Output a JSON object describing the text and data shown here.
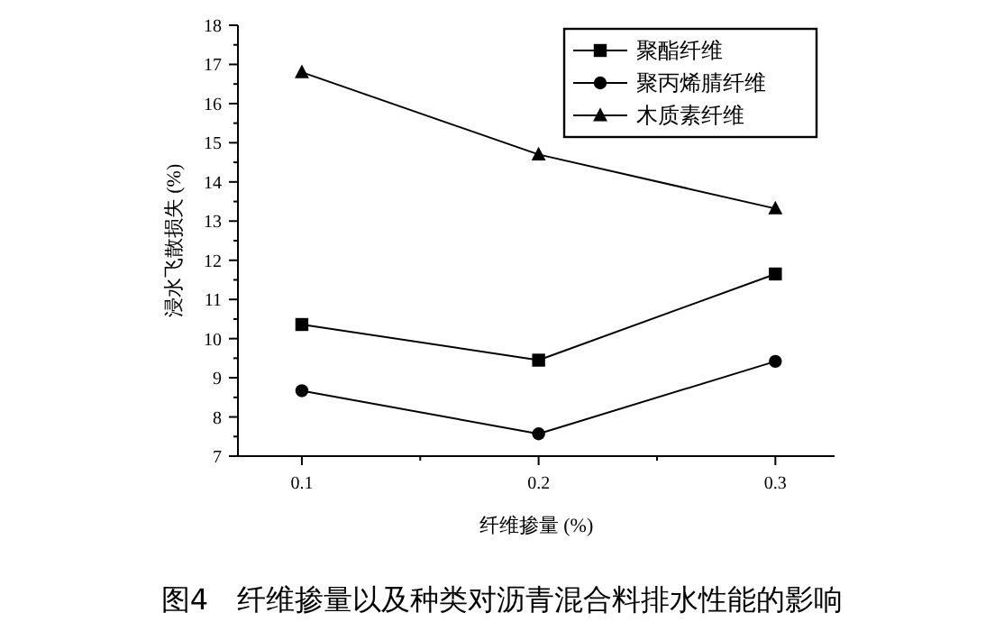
{
  "chart_data": {
    "type": "line",
    "title": "图4　纤维掺量以及种类对沥青混合料排水性能的影响",
    "xlabel": "纤维掺量 (%)",
    "ylabel": "浸水飞散损失 (%)",
    "x": [
      0.1,
      0.2,
      0.3
    ],
    "series": [
      {
        "name": "聚酯纤维",
        "color": "#000000",
        "marker": "square",
        "values": [
          10.36,
          9.45,
          11.65
        ]
      },
      {
        "name": "聚丙烯腈纤维",
        "color": "#000000",
        "marker": "circle",
        "values": [
          8.67,
          7.57,
          9.42
        ]
      },
      {
        "name": "木质素纤维",
        "color": "#000000",
        "marker": "triangle",
        "values": [
          16.8,
          14.7,
          13.32
        ]
      }
    ],
    "xlim": [
      0.073,
      0.325
    ],
    "xticks": [
      0.1,
      {
        "value": 0.15,
        "label": null
      },
      0.2,
      {
        "value": 0.25,
        "label": null
      },
      0.3
    ],
    "ylim": [
      7,
      18
    ],
    "yticks": [
      7,
      {
        "value": 7.5,
        "label": null
      },
      8,
      {
        "value": 8.5,
        "label": null
      },
      9,
      {
        "value": 9.5,
        "label": null
      },
      10,
      {
        "value": 10.5,
        "label": null
      },
      11,
      {
        "value": 11.5,
        "label": null
      },
      12,
      {
        "value": 12.5,
        "label": null
      },
      13,
      {
        "value": 13.5,
        "label": null
      },
      14,
      {
        "value": 14.5,
        "label": null
      },
      15,
      {
        "value": 15.5,
        "label": null
      },
      16,
      {
        "value": 16.5,
        "label": null
      },
      17,
      {
        "value": 17.5,
        "label": null
      },
      18
    ],
    "legend": "top right",
    "line_style": "solid",
    "grid": false
  }
}
